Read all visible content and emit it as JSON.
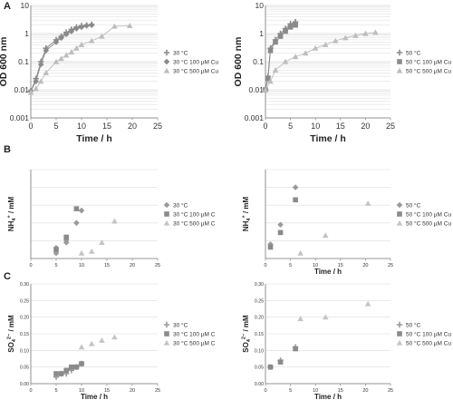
{
  "chart_data": [
    {
      "panel_letter": "A",
      "type": "scatter",
      "connect_lines": true,
      "xlabel": "Time / h",
      "ylabel": "OD 600 nm",
      "xlim": [
        0,
        25
      ],
      "x_ticks": [
        "0",
        "5",
        "10",
        "15",
        "20",
        "25"
      ],
      "yscale": "log",
      "ylim": [
        0.001,
        10
      ],
      "y_ticks": [
        "0.001",
        "0.01",
        "0.1",
        "1",
        "10"
      ],
      "grid": "horizontal",
      "legend_position": "right",
      "series": [
        {
          "name": "30 °C",
          "marker": "plus",
          "color": "#8a8a8a",
          "x": [
            0,
            1,
            2,
            3,
            5,
            6,
            7,
            8,
            9,
            10,
            11,
            12
          ],
          "y": [
            0.009,
            0.025,
            0.1,
            0.3,
            0.6,
            0.8,
            1.1,
            1.4,
            1.7,
            1.9,
            2.0,
            2.1
          ]
        },
        {
          "name": "30 °C 100 µM Cu",
          "marker": "diamond",
          "color": "#8a8a8a",
          "x": [
            0,
            1,
            2,
            3,
            5,
            6,
            7,
            8,
            9,
            10,
            11,
            12
          ],
          "y": [
            0.009,
            0.02,
            0.08,
            0.25,
            0.5,
            0.7,
            0.95,
            1.2,
            1.5,
            1.7,
            1.9,
            2.0
          ]
        },
        {
          "name": "30 °C 500 µM Cu",
          "marker": "triangle",
          "color": "#bdbdbd",
          "x": [
            0,
            1,
            2,
            3,
            5,
            6,
            7,
            8,
            9,
            10,
            12,
            14,
            16.5,
            19.5
          ],
          "y": [
            0.008,
            0.011,
            0.02,
            0.04,
            0.1,
            0.13,
            0.17,
            0.22,
            0.3,
            0.4,
            0.55,
            0.8,
            1.8,
            1.9
          ]
        }
      ]
    },
    {
      "type": "scatter",
      "connect_lines": true,
      "xlabel": "Time / h",
      "ylabel": "OD 600 nm",
      "xlim": [
        0,
        25
      ],
      "x_ticks": [
        "0",
        "5",
        "10",
        "15",
        "20",
        "25"
      ],
      "yscale": "log",
      "ylim": [
        0.001,
        10
      ],
      "y_ticks": [
        "0.001",
        "0.01",
        "0.1",
        "1",
        "10"
      ],
      "grid": "horizontal",
      "legend_position": "right",
      "series": [
        {
          "name": "50 °C",
          "marker": "plus",
          "color": "#8a8a8a",
          "x": [
            0,
            0.5,
            1,
            2,
            3,
            4,
            5,
            6
          ],
          "y": [
            0.01,
            0.03,
            0.3,
            0.6,
            1.0,
            1.5,
            2.2,
            2.6
          ]
        },
        {
          "name": "50 °C  100 µM Cu",
          "marker": "square",
          "color": "#8a8a8a",
          "x": [
            0,
            0.5,
            1,
            2,
            3,
            4,
            5,
            6
          ],
          "y": [
            0.01,
            0.025,
            0.25,
            0.5,
            0.8,
            1.2,
            1.7,
            2.0
          ]
        },
        {
          "name": "50 °C  500 µM Cu",
          "marker": "triangle",
          "color": "#bdbdbd",
          "x": [
            0,
            1,
            2,
            4,
            6,
            8,
            10,
            12,
            14,
            16,
            18,
            20,
            22
          ],
          "y": [
            0.01,
            0.02,
            0.05,
            0.1,
            0.15,
            0.2,
            0.3,
            0.4,
            0.55,
            0.7,
            0.85,
            1.0,
            1.1
          ]
        }
      ]
    },
    {
      "panel_letter": "B",
      "type": "scatter",
      "connect_lines": false,
      "xlabel": "",
      "ylabel_main": "NH",
      "ylabel_sub": "4",
      "ylabel_sup": "+",
      "ylabel_end": " / mM",
      "xlim": [
        0,
        25
      ],
      "x_ticks": [
        "0",
        "5",
        "10",
        "15",
        "20",
        "25"
      ],
      "ylim": [
        0,
        25
      ],
      "y_ticks": [],
      "grid": "horizontal",
      "legend_position": "right",
      "series": [
        {
          "name": "30 °C",
          "marker": "diamond",
          "color": "#9a9a9a",
          "x": [
            5,
            5,
            7,
            7,
            9,
            10
          ],
          "y": [
            1.5,
            3,
            4.5,
            5.2,
            10,
            13.5
          ]
        },
        {
          "name": "30 °C  100 µM C",
          "marker": "square",
          "color": "#8a8a8a",
          "x": [
            5,
            7,
            9
          ],
          "y": [
            2.5,
            6,
            14
          ]
        },
        {
          "name": "30 °C  500 µM C",
          "marker": "triangle",
          "color": "#c4c4c4",
          "x": [
            10,
            12,
            14,
            16.5
          ],
          "y": [
            1.5,
            2,
            4.5,
            10.5
          ]
        }
      ]
    },
    {
      "type": "scatter",
      "connect_lines": false,
      "xlabel": "Time / h",
      "ylabel_main": "NH",
      "ylabel_sub": "4",
      "ylabel_sup": "+",
      "ylabel_end": " / mM",
      "xlim": [
        0,
        25
      ],
      "x_ticks": [
        "0",
        "5",
        "10",
        "15",
        "20",
        "25"
      ],
      "ylim": [
        0,
        25
      ],
      "y_ticks": [],
      "grid": "horizontal",
      "legend_position": "right",
      "series": [
        {
          "name": "50 °C",
          "marker": "diamond",
          "color": "#9a9a9a",
          "x": [
            1,
            3,
            6
          ],
          "y": [
            4,
            9.5,
            20
          ]
        },
        {
          "name": "50 °C  100 µM Cu",
          "marker": "square",
          "color": "#8a8a8a",
          "x": [
            1,
            3,
            6
          ],
          "y": [
            3.2,
            7.3,
            16.5
          ]
        },
        {
          "name": "50 °C  500 µM Cu",
          "marker": "triangle",
          "color": "#c4c4c4",
          "x": [
            7,
            12,
            20.5
          ],
          "y": [
            1.5,
            6.5,
            15.5
          ]
        }
      ]
    },
    {
      "panel_letter": "C",
      "type": "scatter",
      "connect_lines": false,
      "xlabel": "Time / h",
      "ylabel_main": "SO",
      "ylabel_sub": "4",
      "ylabel_sup": "2−",
      "ylabel_end": " / mM",
      "xlim": [
        0,
        25
      ],
      "x_ticks": [
        "0",
        "5",
        "10",
        "15",
        "20",
        "25"
      ],
      "ylim": [
        0,
        0.3
      ],
      "y_ticks": [
        "0.00",
        "0.05",
        "0.10",
        "0.15",
        "0.20",
        "0.25",
        "0.30"
      ],
      "grid": "horizontal",
      "legend_position": "right",
      "series": [
        {
          "name": "30 °C",
          "marker": "plus",
          "color": "#9a9a9a",
          "x": [
            5,
            6,
            7,
            8,
            9,
            10
          ],
          "y": [
            0.02,
            0.03,
            0.03,
            0.04,
            0.05,
            0.06
          ]
        },
        {
          "name": "30 °C  100 µM C",
          "marker": "square",
          "color": "#8a8a8a",
          "x": [
            5,
            6,
            7,
            8,
            9,
            10
          ],
          "y": [
            0.03,
            0.03,
            0.04,
            0.05,
            0.05,
            0.06
          ]
        },
        {
          "name": "30 °C  500 µM C",
          "marker": "triangle",
          "color": "#c4c4c4",
          "x": [
            10,
            12,
            14,
            16.5
          ],
          "y": [
            0.11,
            0.12,
            0.13,
            0.14
          ]
        }
      ]
    },
    {
      "type": "scatter",
      "connect_lines": false,
      "xlabel": "Time / h",
      "ylabel_main": "SO",
      "ylabel_sub": "4",
      "ylabel_sup": "2−",
      "ylabel_end": " / mM",
      "xlim": [
        0,
        25
      ],
      "x_ticks": [
        "0",
        "5",
        "10",
        "15",
        "20",
        "25"
      ],
      "ylim": [
        0,
        0.3
      ],
      "y_ticks": [
        "0.00",
        "0.05",
        "0.10",
        "0.15",
        "0.20",
        "0.25",
        "0.30"
      ],
      "grid": "horizontal",
      "legend_position": "right",
      "series": [
        {
          "name": "50 °C",
          "marker": "plus",
          "color": "#9a9a9a",
          "x": [
            1,
            3,
            6
          ],
          "y": [
            0.05,
            0.07,
            0.11
          ]
        },
        {
          "name": "50 °C  100 µM Cu",
          "marker": "square",
          "color": "#8a8a8a",
          "x": [
            1,
            3,
            6
          ],
          "y": [
            0.05,
            0.065,
            0.105
          ]
        },
        {
          "name": "50 °C  500 µM Cu",
          "marker": "triangle",
          "color": "#c4c4c4",
          "x": [
            7,
            12,
            20.5
          ],
          "y": [
            0.195,
            0.2,
            0.24
          ]
        }
      ]
    }
  ]
}
